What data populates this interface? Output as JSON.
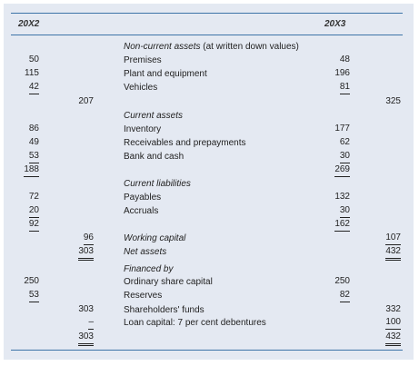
{
  "header": {
    "col_20x2": "20X2",
    "col_20x3": "20X3"
  },
  "rows": {
    "nca_head": {
      "label_italic": "Non-current assets",
      "label_rest": " (at written down values)"
    },
    "premises": {
      "label": "Premises",
      "c1": "50",
      "c3": "48"
    },
    "plant": {
      "label": "Plant and equipment",
      "c1": "115",
      "c3": "196"
    },
    "vehicles": {
      "label": "Vehicles",
      "c1": "42",
      "c3": "81"
    },
    "nca_total": {
      "c2": "207",
      "c4": "325"
    },
    "ca_head": {
      "label": "Current assets"
    },
    "inventory": {
      "label": "Inventory",
      "c1": "86",
      "c3": "177"
    },
    "receivables": {
      "label": "Receivables and prepayments",
      "c1": "49",
      "c3": "62"
    },
    "bank": {
      "label": "Bank and cash",
      "c1": "53",
      "c3": "30"
    },
    "ca_total": {
      "c1": "188",
      "c3": "269"
    },
    "cl_head": {
      "label": "Current liabilities"
    },
    "payables": {
      "label": "Payables",
      "c1": "72",
      "c3": "132"
    },
    "accruals": {
      "label": "Accruals",
      "c1": "20",
      "c3": "30"
    },
    "cl_total": {
      "c1": "92",
      "c3": "162"
    },
    "wc": {
      "label": "Working capital",
      "c2": "96",
      "c4": "107"
    },
    "net_assets": {
      "label": "Net assets",
      "c2": "303",
      "c4": "432"
    },
    "fin_head": {
      "label": "Financed by"
    },
    "share_cap": {
      "label": "Ordinary share capital",
      "c1": "250",
      "c3": "250"
    },
    "reserves": {
      "label": "Reserves",
      "c1": "53",
      "c3": "82"
    },
    "sh_funds": {
      "label": "Shareholders' funds",
      "c2": "303",
      "c4": "332"
    },
    "loan": {
      "label": "Loan capital: 7 per cent debentures",
      "c2": "–",
      "c4": "100"
    },
    "total": {
      "c2": "303",
      "c4": "432"
    }
  }
}
